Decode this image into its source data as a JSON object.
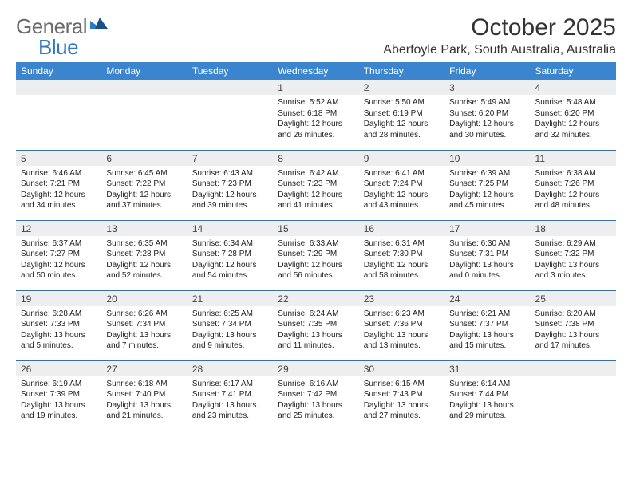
{
  "logo": {
    "general": "General",
    "blue": "Blue"
  },
  "title": "October 2025",
  "location": "Aberfoyle Park, South Australia, Australia",
  "colors": {
    "header_bg": "#3b84ce",
    "header_text": "#ffffff",
    "daynum_bg": "#eceeef",
    "row_border": "#3b6fa0",
    "logo_blue": "#2f78c4",
    "logo_gray": "#6a6a6a"
  },
  "weekdays": [
    "Sunday",
    "Monday",
    "Tuesday",
    "Wednesday",
    "Thursday",
    "Friday",
    "Saturday"
  ],
  "weeks": [
    [
      null,
      null,
      null,
      {
        "n": "1",
        "sr": "5:52 AM",
        "ss": "6:18 PM",
        "dl": "12 hours and 26 minutes."
      },
      {
        "n": "2",
        "sr": "5:50 AM",
        "ss": "6:19 PM",
        "dl": "12 hours and 28 minutes."
      },
      {
        "n": "3",
        "sr": "5:49 AM",
        "ss": "6:20 PM",
        "dl": "12 hours and 30 minutes."
      },
      {
        "n": "4",
        "sr": "5:48 AM",
        "ss": "6:20 PM",
        "dl": "12 hours and 32 minutes."
      }
    ],
    [
      {
        "n": "5",
        "sr": "6:46 AM",
        "ss": "7:21 PM",
        "dl": "12 hours and 34 minutes."
      },
      {
        "n": "6",
        "sr": "6:45 AM",
        "ss": "7:22 PM",
        "dl": "12 hours and 37 minutes."
      },
      {
        "n": "7",
        "sr": "6:43 AM",
        "ss": "7:23 PM",
        "dl": "12 hours and 39 minutes."
      },
      {
        "n": "8",
        "sr": "6:42 AM",
        "ss": "7:23 PM",
        "dl": "12 hours and 41 minutes."
      },
      {
        "n": "9",
        "sr": "6:41 AM",
        "ss": "7:24 PM",
        "dl": "12 hours and 43 minutes."
      },
      {
        "n": "10",
        "sr": "6:39 AM",
        "ss": "7:25 PM",
        "dl": "12 hours and 45 minutes."
      },
      {
        "n": "11",
        "sr": "6:38 AM",
        "ss": "7:26 PM",
        "dl": "12 hours and 48 minutes."
      }
    ],
    [
      {
        "n": "12",
        "sr": "6:37 AM",
        "ss": "7:27 PM",
        "dl": "12 hours and 50 minutes."
      },
      {
        "n": "13",
        "sr": "6:35 AM",
        "ss": "7:28 PM",
        "dl": "12 hours and 52 minutes."
      },
      {
        "n": "14",
        "sr": "6:34 AM",
        "ss": "7:28 PM",
        "dl": "12 hours and 54 minutes."
      },
      {
        "n": "15",
        "sr": "6:33 AM",
        "ss": "7:29 PM",
        "dl": "12 hours and 56 minutes."
      },
      {
        "n": "16",
        "sr": "6:31 AM",
        "ss": "7:30 PM",
        "dl": "12 hours and 58 minutes."
      },
      {
        "n": "17",
        "sr": "6:30 AM",
        "ss": "7:31 PM",
        "dl": "13 hours and 0 minutes."
      },
      {
        "n": "18",
        "sr": "6:29 AM",
        "ss": "7:32 PM",
        "dl": "13 hours and 3 minutes."
      }
    ],
    [
      {
        "n": "19",
        "sr": "6:28 AM",
        "ss": "7:33 PM",
        "dl": "13 hours and 5 minutes."
      },
      {
        "n": "20",
        "sr": "6:26 AM",
        "ss": "7:34 PM",
        "dl": "13 hours and 7 minutes."
      },
      {
        "n": "21",
        "sr": "6:25 AM",
        "ss": "7:34 PM",
        "dl": "13 hours and 9 minutes."
      },
      {
        "n": "22",
        "sr": "6:24 AM",
        "ss": "7:35 PM",
        "dl": "13 hours and 11 minutes."
      },
      {
        "n": "23",
        "sr": "6:23 AM",
        "ss": "7:36 PM",
        "dl": "13 hours and 13 minutes."
      },
      {
        "n": "24",
        "sr": "6:21 AM",
        "ss": "7:37 PM",
        "dl": "13 hours and 15 minutes."
      },
      {
        "n": "25",
        "sr": "6:20 AM",
        "ss": "7:38 PM",
        "dl": "13 hours and 17 minutes."
      }
    ],
    [
      {
        "n": "26",
        "sr": "6:19 AM",
        "ss": "7:39 PM",
        "dl": "13 hours and 19 minutes."
      },
      {
        "n": "27",
        "sr": "6:18 AM",
        "ss": "7:40 PM",
        "dl": "13 hours and 21 minutes."
      },
      {
        "n": "28",
        "sr": "6:17 AM",
        "ss": "7:41 PM",
        "dl": "13 hours and 23 minutes."
      },
      {
        "n": "29",
        "sr": "6:16 AM",
        "ss": "7:42 PM",
        "dl": "13 hours and 25 minutes."
      },
      {
        "n": "30",
        "sr": "6:15 AM",
        "ss": "7:43 PM",
        "dl": "13 hours and 27 minutes."
      },
      {
        "n": "31",
        "sr": "6:14 AM",
        "ss": "7:44 PM",
        "dl": "13 hours and 29 minutes."
      },
      null
    ]
  ],
  "labels": {
    "sunrise": "Sunrise:",
    "sunset": "Sunset:",
    "daylight": "Daylight:"
  }
}
